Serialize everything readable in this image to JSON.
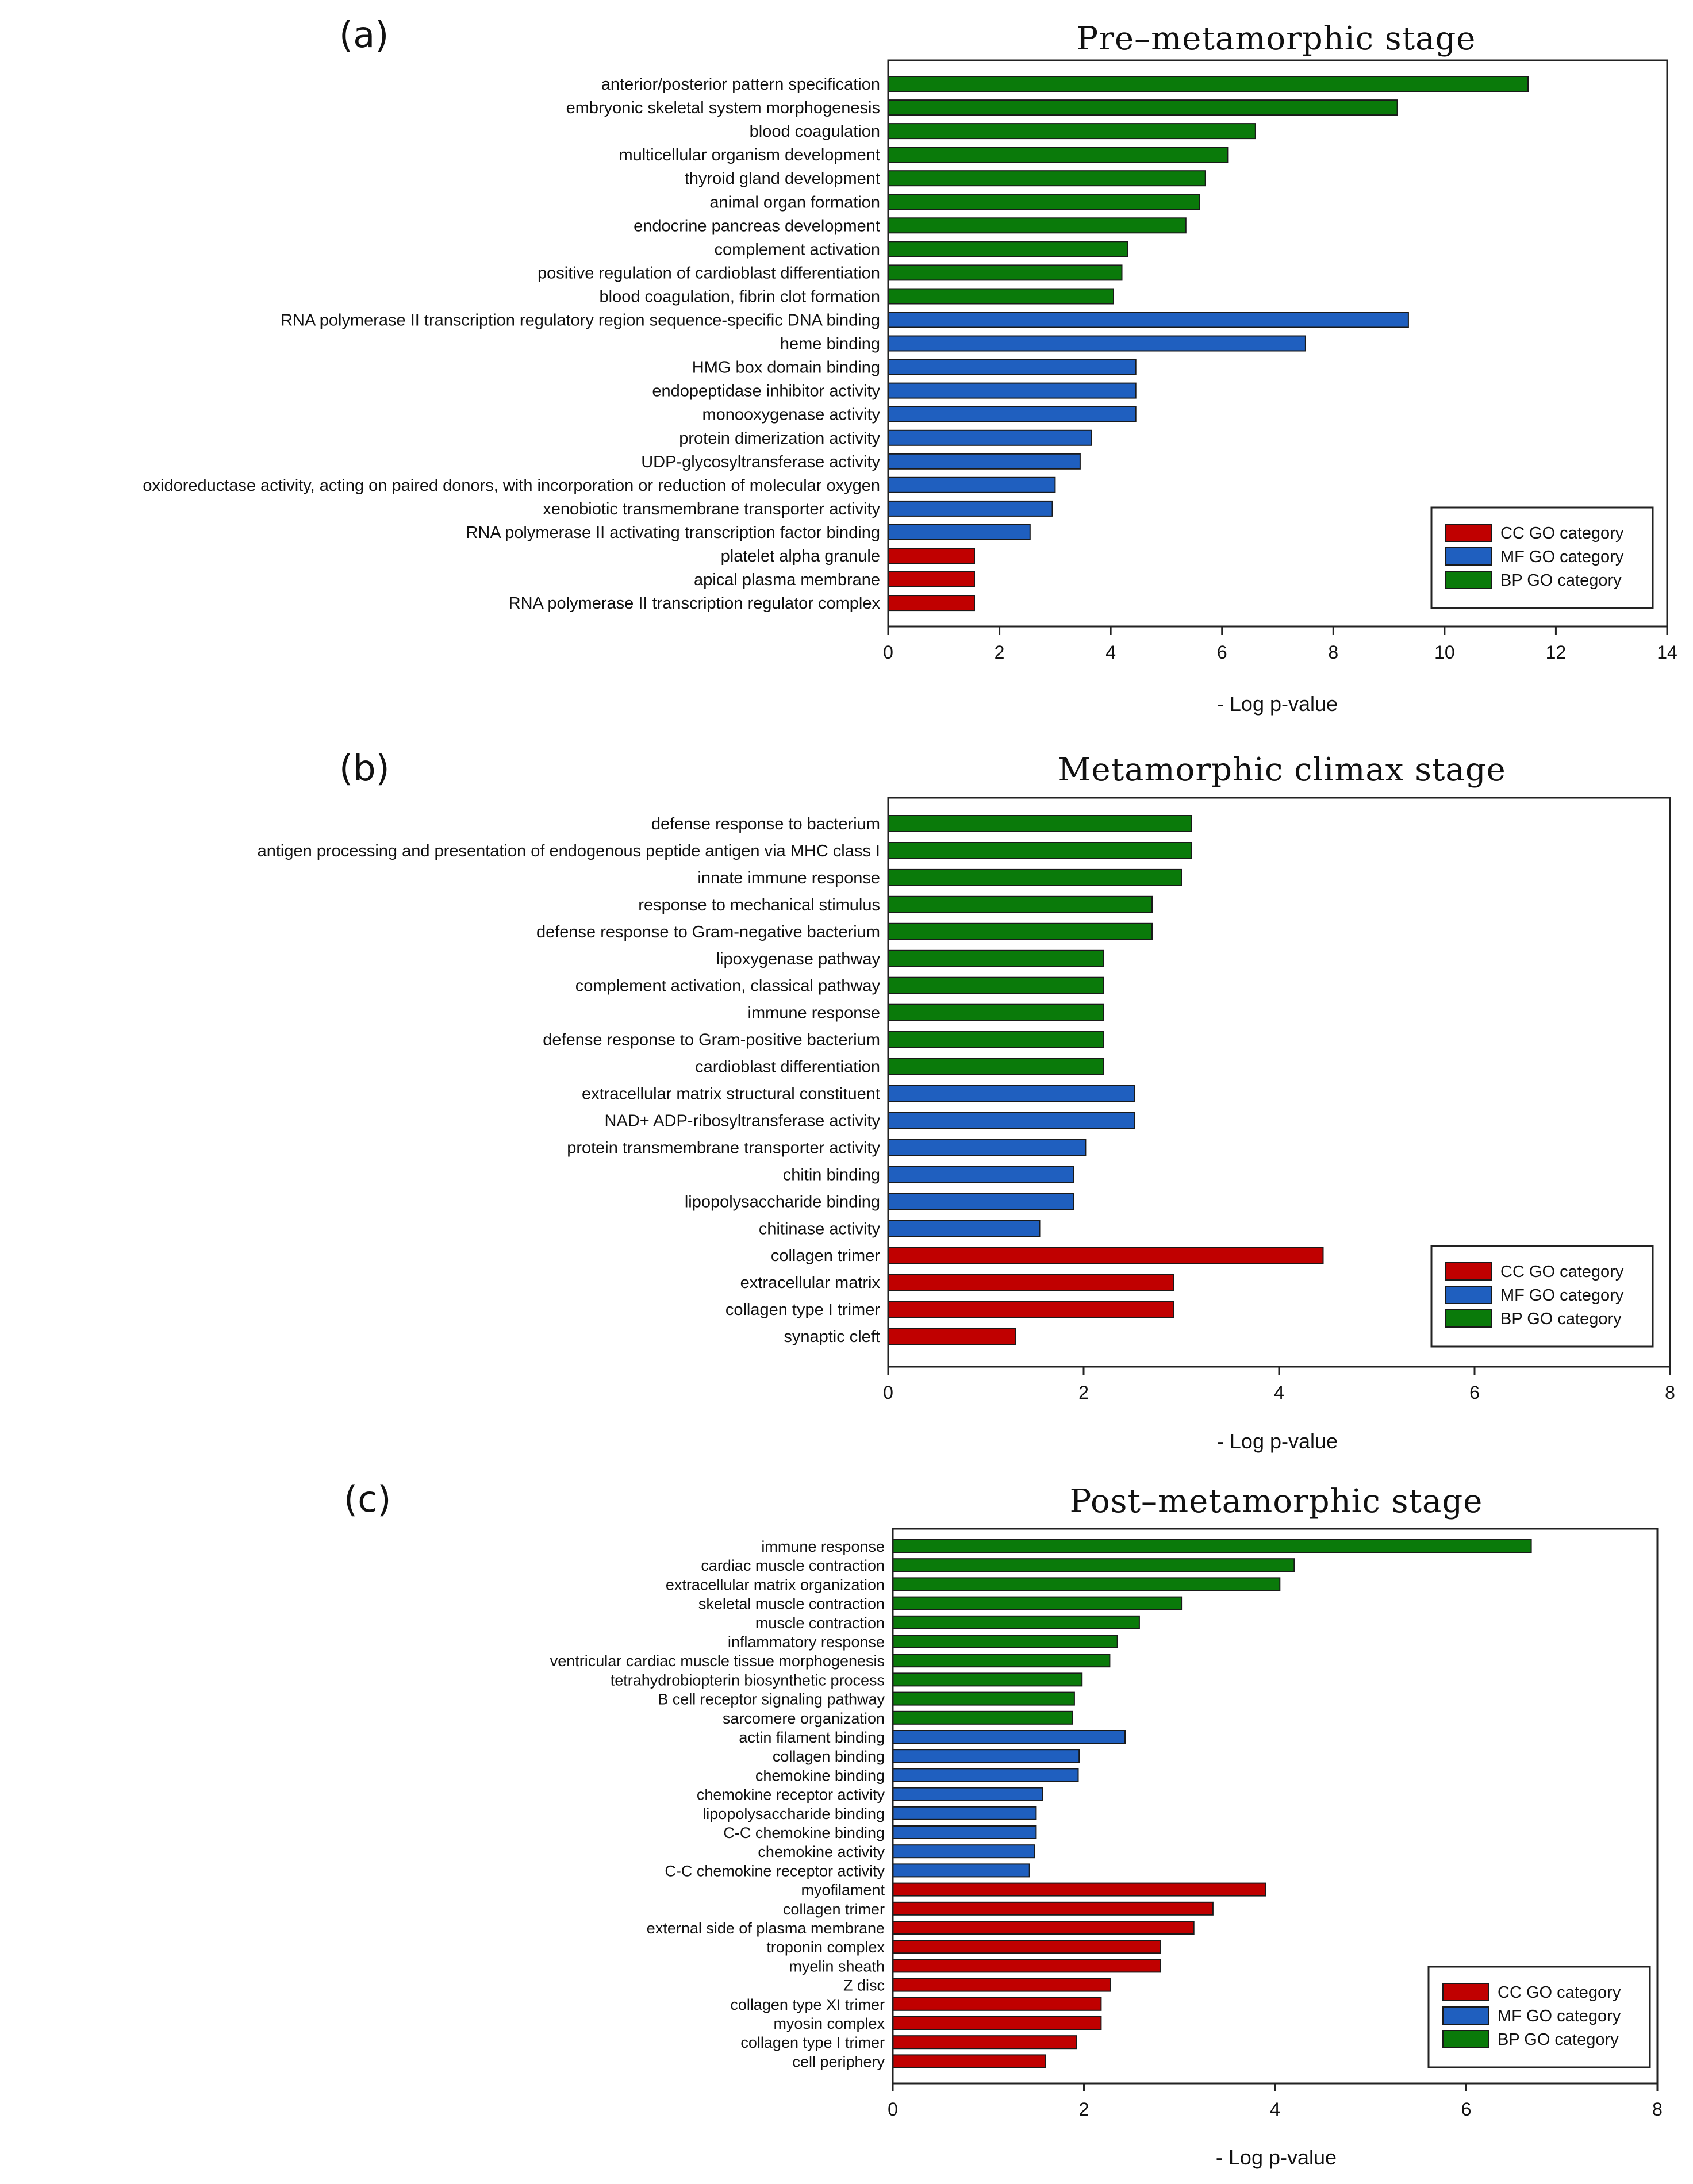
{
  "colors": {
    "CC": "#c00000",
    "MF": "#1f5fbf",
    "BP": "#0a7a0a"
  },
  "chart_data": [
    {
      "panel": "(a)",
      "type": "bar",
      "orientation": "horizontal",
      "title": "Pre–metamorphic stage",
      "xlabel": "- Log p-value",
      "ylabel": "",
      "xlim": [
        0,
        14
      ],
      "xticks": [
        0,
        2,
        4,
        6,
        8,
        10,
        12,
        14
      ],
      "legend": [
        "CC GO category",
        "MF GO category",
        "BP GO category"
      ],
      "legend_position": "bottom-right",
      "categories": [
        "anterior/posterior pattern specification",
        "embryonic skeletal system morphogenesis",
        "blood coagulation",
        "multicellular organism development",
        "thyroid gland development",
        "animal organ formation",
        "endocrine pancreas development",
        "complement activation",
        "positive regulation of cardioblast differentiation",
        "blood coagulation, fibrin clot formation",
        "RNA polymerase II transcription regulatory region sequence-specific DNA binding",
        "heme binding",
        "HMG box domain binding",
        "endopeptidase inhibitor activity",
        "monooxygenase activity",
        "protein dimerization activity",
        "UDP-glycosyltransferase activity",
        "oxidoreductase activity, acting on paired donors, with incorporation or reduction of molecular oxygen",
        "xenobiotic transmembrane transporter activity",
        "RNA polymerase II activating transcription factor binding",
        "platelet alpha granule",
        "apical plasma membrane",
        "RNA polymerase II transcription regulator complex"
      ],
      "values": [
        11.5,
        9.15,
        6.6,
        6.1,
        5.7,
        5.6,
        5.35,
        4.3,
        4.2,
        4.05,
        9.35,
        7.5,
        4.45,
        4.45,
        4.45,
        3.65,
        3.45,
        3.0,
        2.95,
        2.55,
        1.55,
        1.55,
        1.55
      ],
      "groups": [
        "BP",
        "BP",
        "BP",
        "BP",
        "BP",
        "BP",
        "BP",
        "BP",
        "BP",
        "BP",
        "MF",
        "MF",
        "MF",
        "MF",
        "MF",
        "MF",
        "MF",
        "MF",
        "MF",
        "MF",
        "CC",
        "CC",
        "CC"
      ]
    },
    {
      "panel": "(b)",
      "type": "bar",
      "orientation": "horizontal",
      "title": "Metamorphic climax stage",
      "xlabel": "- Log p-value",
      "ylabel": "",
      "xlim": [
        0,
        8
      ],
      "xticks": [
        0,
        2,
        4,
        6,
        8
      ],
      "legend": [
        "CC GO category",
        "MF GO category",
        "BP GO category"
      ],
      "legend_position": "bottom-right",
      "categories": [
        "defense response to bacterium",
        "antigen processing and presentation of endogenous peptide antigen via MHC class I",
        "innate immune response",
        "response to mechanical stimulus",
        "defense response to Gram-negative bacterium",
        "lipoxygenase pathway",
        "complement activation, classical pathway",
        "immune response",
        "defense response to Gram-positive bacterium",
        "cardioblast differentiation",
        "extracellular matrix structural constituent",
        "NAD+ ADP-ribosyltransferase activity",
        "protein transmembrane transporter activity",
        "chitin binding",
        "lipopolysaccharide binding",
        "chitinase activity",
        "collagen trimer",
        "extracellular matrix",
        "collagen type I trimer",
        "synaptic cleft"
      ],
      "values": [
        3.1,
        3.1,
        3.0,
        2.7,
        2.7,
        2.2,
        2.2,
        2.2,
        2.2,
        2.2,
        2.52,
        2.52,
        2.02,
        1.9,
        1.9,
        1.55,
        4.45,
        2.92,
        2.92,
        1.3
      ],
      "groups": [
        "BP",
        "BP",
        "BP",
        "BP",
        "BP",
        "BP",
        "BP",
        "BP",
        "BP",
        "BP",
        "MF",
        "MF",
        "MF",
        "MF",
        "MF",
        "MF",
        "CC",
        "CC",
        "CC",
        "CC"
      ]
    },
    {
      "panel": "(c)",
      "type": "bar",
      "orientation": "horizontal",
      "title": "Post–metamorphic stage",
      "xlabel": "- Log p-value",
      "ylabel": "",
      "xlim": [
        0,
        8
      ],
      "xticks": [
        0,
        2,
        4,
        6,
        8
      ],
      "legend": [
        "CC GO category",
        "MF GO category",
        "BP GO category"
      ],
      "legend_position": "bottom-right",
      "categories": [
        "immune response",
        "cardiac muscle contraction",
        "extracellular matrix organization",
        "skeletal muscle contraction",
        "muscle contraction",
        "inflammatory response",
        "ventricular cardiac muscle tissue morphogenesis",
        "tetrahydrobiopterin biosynthetic process",
        "B cell receptor signaling pathway",
        "sarcomere organization",
        "actin filament binding",
        "collagen binding",
        "chemokine binding",
        "chemokine receptor activity",
        "lipopolysaccharide binding",
        "C-C chemokine binding",
        "chemokine activity",
        "C-C chemokine receptor activity",
        "myofilament",
        "collagen trimer",
        "external side of plasma membrane",
        "troponin complex",
        "myelin sheath",
        "Z disc",
        "collagen type XI trimer",
        "myosin complex",
        "collagen type I trimer",
        "cell periphery"
      ],
      "values": [
        6.68,
        4.2,
        4.05,
        3.02,
        2.58,
        2.35,
        2.27,
        1.98,
        1.9,
        1.88,
        2.43,
        1.95,
        1.94,
        1.57,
        1.5,
        1.5,
        1.48,
        1.43,
        3.9,
        3.35,
        3.15,
        2.8,
        2.8,
        2.28,
        2.18,
        2.18,
        1.92,
        1.6
      ],
      "groups": [
        "BP",
        "BP",
        "BP",
        "BP",
        "BP",
        "BP",
        "BP",
        "BP",
        "BP",
        "BP",
        "MF",
        "MF",
        "MF",
        "MF",
        "MF",
        "MF",
        "MF",
        "MF",
        "CC",
        "CC",
        "CC",
        "CC",
        "CC",
        "CC",
        "CC",
        "CC",
        "CC",
        "CC"
      ]
    }
  ]
}
